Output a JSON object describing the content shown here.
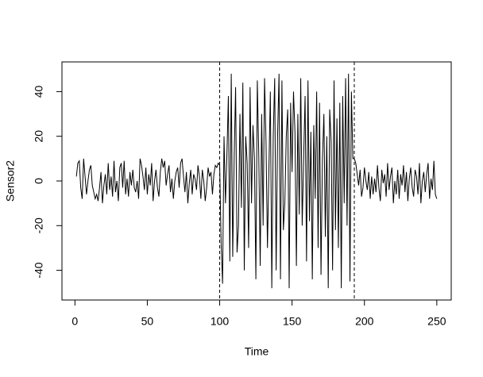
{
  "chart_data": {
    "type": "line",
    "xlabel": "Time",
    "ylabel": "Sensor2",
    "x": [
      1,
      2,
      3,
      4,
      5,
      6,
      7,
      8,
      9,
      10,
      11,
      12,
      13,
      14,
      15,
      16,
      17,
      18,
      19,
      20,
      21,
      22,
      23,
      24,
      25,
      26,
      27,
      28,
      29,
      30,
      31,
      32,
      33,
      34,
      35,
      36,
      37,
      38,
      39,
      40,
      41,
      42,
      43,
      44,
      45,
      46,
      47,
      48,
      49,
      50,
      51,
      52,
      53,
      54,
      55,
      56,
      57,
      58,
      59,
      60,
      61,
      62,
      63,
      64,
      65,
      66,
      67,
      68,
      69,
      70,
      71,
      72,
      73,
      74,
      75,
      76,
      77,
      78,
      79,
      80,
      81,
      82,
      83,
      84,
      85,
      86,
      87,
      88,
      89,
      90,
      91,
      92,
      93,
      94,
      95,
      96,
      97,
      98,
      99,
      100,
      101,
      102,
      103,
      104,
      105,
      106,
      107,
      108,
      109,
      110,
      111,
      112,
      113,
      114,
      115,
      116,
      117,
      118,
      119,
      120,
      121,
      122,
      123,
      124,
      125,
      126,
      127,
      128,
      129,
      130,
      131,
      132,
      133,
      134,
      135,
      136,
      137,
      138,
      139,
      140,
      141,
      142,
      143,
      144,
      145,
      146,
      147,
      148,
      149,
      150,
      151,
      152,
      153,
      154,
      155,
      156,
      157,
      158,
      159,
      160,
      161,
      162,
      163,
      164,
      165,
      166,
      167,
      168,
      169,
      170,
      171,
      172,
      173,
      174,
      175,
      176,
      177,
      178,
      179,
      180,
      181,
      182,
      183,
      184,
      185,
      186,
      187,
      188,
      189,
      190,
      191,
      192,
      193,
      194,
      195,
      196,
      197,
      198,
      199,
      200,
      201,
      202,
      203,
      204,
      205,
      206,
      207,
      208,
      209,
      210,
      211,
      212,
      213,
      214,
      215,
      216,
      217,
      218,
      219,
      220,
      221,
      222,
      223,
      224,
      225,
      226,
      227,
      228,
      229,
      230,
      231,
      232,
      233,
      234,
      235,
      236,
      237,
      238,
      239,
      240,
      241,
      242,
      243,
      244,
      245,
      246,
      247,
      248,
      249,
      250
    ],
    "series": [
      {
        "name": "Sensor2",
        "color": "#000000",
        "values": [
          2,
          8,
          9,
          -3,
          -8,
          10,
          2,
          -6,
          0,
          5,
          7,
          -2,
          -5,
          -8,
          -6,
          -9,
          -3,
          4,
          -10,
          -2,
          3,
          -6,
          8,
          -4,
          2,
          -7,
          9,
          -5,
          0,
          -9,
          6,
          8,
          -3,
          9,
          -6,
          1,
          -7,
          4,
          -2,
          5,
          -3,
          -5,
          0,
          -8,
          10,
          7,
          2,
          -4,
          6,
          -6,
          3,
          -2,
          8,
          -9,
          0,
          5,
          -3,
          -7,
          4,
          10,
          6,
          9,
          -2,
          3,
          7,
          -5,
          1,
          -8,
          0,
          4,
          6,
          -3,
          8,
          10,
          2,
          -5,
          4,
          -10,
          -1,
          5,
          -6,
          3,
          1,
          -4,
          7,
          2,
          -8,
          5,
          0,
          -9,
          -3,
          6,
          2,
          4,
          -6,
          3,
          7,
          6,
          8,
          7,
          -28,
          -46,
          20,
          -10,
          12,
          38,
          -36,
          48,
          -34,
          10,
          42,
          -32,
          -20,
          30,
          -12,
          44,
          -40,
          20,
          8,
          -30,
          42,
          -10,
          25,
          10,
          -44,
          45,
          12,
          -38,
          30,
          -20,
          46,
          18,
          -30,
          5,
          40,
          -48,
          20,
          46,
          -40,
          20,
          48,
          -44,
          45,
          -22,
          -10,
          20,
          32,
          -48,
          35,
          4,
          40,
          22,
          -38,
          30,
          -15,
          46,
          -20,
          10,
          38,
          -36,
          45,
          -18,
          22,
          -44,
          25,
          -8,
          40,
          -30,
          35,
          -42,
          10,
          30,
          -25,
          20,
          -48,
          32,
          18,
          -40,
          45,
          -22,
          28,
          -30,
          35,
          -48,
          38,
          -10,
          46,
          -20,
          48,
          -45,
          40,
          10,
          10,
          8,
          3,
          -2,
          5,
          -7,
          -3,
          6,
          0,
          -4,
          4,
          -8,
          2,
          -6,
          1,
          -5,
          7,
          -3,
          -9,
          5,
          -1,
          3,
          -7,
          8,
          -4,
          2,
          6,
          -10,
          0,
          -6,
          5,
          -8,
          3,
          -2,
          7,
          -5,
          4,
          -9,
          1,
          6,
          -3,
          -7,
          5,
          2,
          -6,
          8,
          -10,
          0,
          4,
          -5,
          3,
          8,
          -8,
          1,
          -4,
          9,
          -6,
          -8
        ]
      }
    ],
    "vlines": [
      100,
      193
    ],
    "xlim": [
      -8.96,
      259.96
    ],
    "ylim": [
      -53.3,
      53.3
    ],
    "xticks": [
      0,
      50,
      100,
      150,
      200,
      250
    ],
    "yticks": [
      -40,
      -20,
      0,
      20,
      40
    ],
    "grid": false
  }
}
